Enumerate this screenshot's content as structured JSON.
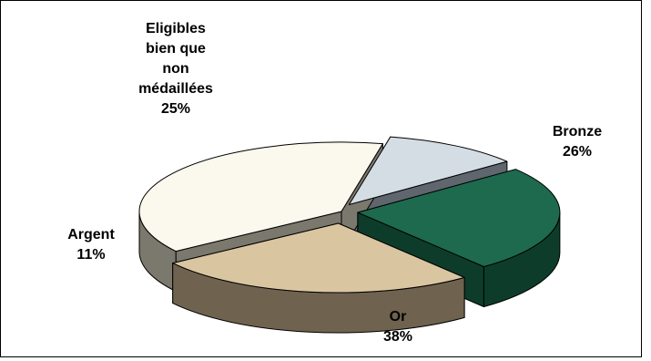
{
  "chart_data": {
    "type": "pie",
    "style": "3d-exploded",
    "slices": [
      {
        "name_lines": [
          "Or"
        ],
        "pct_label": "38%",
        "value": 38,
        "color": "#fbf8ee",
        "side_color": "#7b786d"
      },
      {
        "name_lines": [
          "Argent"
        ],
        "pct_label": "11%",
        "value": 11,
        "color": "#d5dde4",
        "side_color": "#5f666e"
      },
      {
        "name_lines": [
          "Eligibles",
          "bien que",
          "non",
          "médaillées"
        ],
        "pct_label": "25%",
        "value": 25,
        "color": "#1d6a4e",
        "side_color": "#0e3c2b"
      },
      {
        "name_lines": [
          "Bronze"
        ],
        "pct_label": "26%",
        "value": 26,
        "color": "#d9c5a0",
        "side_color": "#6f634f"
      }
    ],
    "legend": "none"
  }
}
